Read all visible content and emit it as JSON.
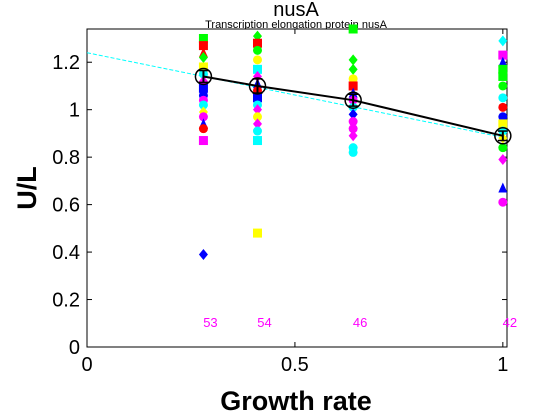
{
  "chart_data": {
    "type": "scatter",
    "title": "nusA",
    "subtitle": "Transcription elongation protein nusA",
    "xlabel": "Growth rate",
    "ylabel": "U/L",
    "xlim": [
      0,
      1.01
    ],
    "ylim": [
      0,
      1.34
    ],
    "xticks": [
      0,
      0.5,
      1
    ],
    "xtick_labels": [
      "0",
      "0.5",
      "1"
    ],
    "yticks": [
      0,
      0.2,
      0.4,
      0.6,
      0.8,
      1,
      1.2
    ],
    "ytick_labels": [
      "0",
      "0.2",
      "0.4",
      "0.6",
      "0.8",
      "1",
      "1.2"
    ],
    "grid": false,
    "legend": "none",
    "growth_rates": [
      0.28,
      0.41,
      0.64,
      1.0
    ],
    "sample_counts": [
      "53",
      "54",
      "46",
      "42"
    ],
    "points": [
      {
        "x": 0.28,
        "y": 1.3,
        "marker": "square",
        "color": "#00ff00"
      },
      {
        "x": 0.28,
        "y": 1.27,
        "marker": "square",
        "color": "#ff0000"
      },
      {
        "x": 0.28,
        "y": 1.24,
        "marker": "triangle",
        "color": "#ff0000"
      },
      {
        "x": 0.28,
        "y": 1.22,
        "marker": "diamond",
        "color": "#00ff00"
      },
      {
        "x": 0.28,
        "y": 1.18,
        "marker": "square",
        "color": "#ffff00"
      },
      {
        "x": 0.28,
        "y": 1.15,
        "marker": "circle",
        "color": "#00ffff"
      },
      {
        "x": 0.28,
        "y": 1.12,
        "marker": "diamond",
        "color": "#ff00ff"
      },
      {
        "x": 0.28,
        "y": 1.09,
        "marker": "square",
        "color": "#0000ff"
      },
      {
        "x": 0.28,
        "y": 1.06,
        "marker": "circle",
        "color": "#0000ff"
      },
      {
        "x": 0.28,
        "y": 1.04,
        "marker": "circle",
        "color": "#ff00ff"
      },
      {
        "x": 0.28,
        "y": 1.02,
        "marker": "circle",
        "color": "#00ffff"
      },
      {
        "x": 0.28,
        "y": 0.99,
        "marker": "diamond",
        "color": "#ffff00"
      },
      {
        "x": 0.28,
        "y": 0.97,
        "marker": "circle",
        "color": "#ff00ff"
      },
      {
        "x": 0.28,
        "y": 0.94,
        "marker": "triangle",
        "color": "#0000ff"
      },
      {
        "x": 0.28,
        "y": 0.92,
        "marker": "circle",
        "color": "#ff0000"
      },
      {
        "x": 0.28,
        "y": 0.87,
        "marker": "square",
        "color": "#ff00ff"
      },
      {
        "x": 0.28,
        "y": 0.39,
        "marker": "diamond",
        "color": "#0000ff"
      },
      {
        "x": 0.41,
        "y": 1.31,
        "marker": "diamond",
        "color": "#00ff00"
      },
      {
        "x": 0.41,
        "y": 1.28,
        "marker": "square",
        "color": "#ff0000"
      },
      {
        "x": 0.41,
        "y": 1.25,
        "marker": "circle",
        "color": "#00ff00"
      },
      {
        "x": 0.41,
        "y": 1.21,
        "marker": "circle",
        "color": "#ffff00"
      },
      {
        "x": 0.41,
        "y": 1.17,
        "marker": "square",
        "color": "#00ffff"
      },
      {
        "x": 0.41,
        "y": 1.14,
        "marker": "diamond",
        "color": "#ff00ff"
      },
      {
        "x": 0.41,
        "y": 1.11,
        "marker": "triangle",
        "color": "#0000ff"
      },
      {
        "x": 0.41,
        "y": 1.08,
        "marker": "circle",
        "color": "#ff0000"
      },
      {
        "x": 0.41,
        "y": 1.05,
        "marker": "square",
        "color": "#0000ff"
      },
      {
        "x": 0.41,
        "y": 1.02,
        "marker": "circle",
        "color": "#00ffff"
      },
      {
        "x": 0.41,
        "y": 1.0,
        "marker": "diamond",
        "color": "#ff00ff"
      },
      {
        "x": 0.41,
        "y": 0.97,
        "marker": "circle",
        "color": "#ffff00"
      },
      {
        "x": 0.41,
        "y": 0.94,
        "marker": "diamond",
        "color": "#ff00ff"
      },
      {
        "x": 0.41,
        "y": 0.91,
        "marker": "circle",
        "color": "#00ffff"
      },
      {
        "x": 0.41,
        "y": 0.87,
        "marker": "square",
        "color": "#00ffff"
      },
      {
        "x": 0.41,
        "y": 0.48,
        "marker": "square",
        "color": "#ffff00"
      },
      {
        "x": 0.64,
        "y": 1.34,
        "marker": "square",
        "color": "#00ff00"
      },
      {
        "x": 0.64,
        "y": 1.21,
        "marker": "diamond",
        "color": "#00ff00"
      },
      {
        "x": 0.64,
        "y": 1.17,
        "marker": "diamond",
        "color": "#00ff00"
      },
      {
        "x": 0.64,
        "y": 1.13,
        "marker": "circle",
        "color": "#ffff00"
      },
      {
        "x": 0.64,
        "y": 1.1,
        "marker": "square",
        "color": "#ff0000"
      },
      {
        "x": 0.64,
        "y": 1.07,
        "marker": "triangle",
        "color": "#0000ff"
      },
      {
        "x": 0.64,
        "y": 1.04,
        "marker": "circle",
        "color": "#ff00ff"
      },
      {
        "x": 0.64,
        "y": 1.01,
        "marker": "circle",
        "color": "#00ffff"
      },
      {
        "x": 0.64,
        "y": 0.98,
        "marker": "diamond",
        "color": "#0000ff"
      },
      {
        "x": 0.64,
        "y": 0.95,
        "marker": "circle",
        "color": "#ff00ff"
      },
      {
        "x": 0.64,
        "y": 0.92,
        "marker": "circle",
        "color": "#ff00ff"
      },
      {
        "x": 0.64,
        "y": 0.89,
        "marker": "diamond",
        "color": "#ff00ff"
      },
      {
        "x": 0.64,
        "y": 0.84,
        "marker": "circle",
        "color": "#00ffff"
      },
      {
        "x": 0.64,
        "y": 0.82,
        "marker": "circle",
        "color": "#00ffff"
      },
      {
        "x": 1.0,
        "y": 1.29,
        "marker": "diamond",
        "color": "#00ffff"
      },
      {
        "x": 1.0,
        "y": 1.23,
        "marker": "square",
        "color": "#ff00ff"
      },
      {
        "x": 1.0,
        "y": 1.2,
        "marker": "triangle",
        "color": "#0000ff"
      },
      {
        "x": 1.0,
        "y": 1.17,
        "marker": "square",
        "color": "#00ff00"
      },
      {
        "x": 1.0,
        "y": 1.14,
        "marker": "square",
        "color": "#00ff00"
      },
      {
        "x": 1.0,
        "y": 1.1,
        "marker": "circle",
        "color": "#00ff00"
      },
      {
        "x": 1.0,
        "y": 1.05,
        "marker": "circle",
        "color": "#00ffff"
      },
      {
        "x": 1.0,
        "y": 1.01,
        "marker": "circle",
        "color": "#ff0000"
      },
      {
        "x": 1.0,
        "y": 0.97,
        "marker": "circle",
        "color": "#0000ff"
      },
      {
        "x": 1.0,
        "y": 0.94,
        "marker": "square",
        "color": "#ffff00"
      },
      {
        "x": 1.0,
        "y": 0.91,
        "marker": "circle",
        "color": "#00ffff"
      },
      {
        "x": 1.0,
        "y": 0.88,
        "marker": "diamond",
        "color": "#ffff00"
      },
      {
        "x": 1.0,
        "y": 0.84,
        "marker": "circle",
        "color": "#00ff00"
      },
      {
        "x": 1.0,
        "y": 0.79,
        "marker": "diamond",
        "color": "#ff00ff"
      },
      {
        "x": 1.0,
        "y": 0.67,
        "marker": "triangle",
        "color": "#0000ff"
      },
      {
        "x": 1.0,
        "y": 0.61,
        "marker": "circle",
        "color": "#ff00ff"
      }
    ],
    "mean": {
      "x": [
        0.28,
        0.41,
        0.64,
        1.0
      ],
      "y": [
        1.14,
        1.1,
        1.04,
        0.89
      ],
      "err": [
        0.025,
        0.03,
        0.025,
        0.02
      ],
      "color": "#000000"
    },
    "fit_line": {
      "x": [
        0,
        1.01
      ],
      "y": [
        1.24,
        0.88
      ],
      "color": "#00ffff",
      "style": "dashed"
    }
  }
}
